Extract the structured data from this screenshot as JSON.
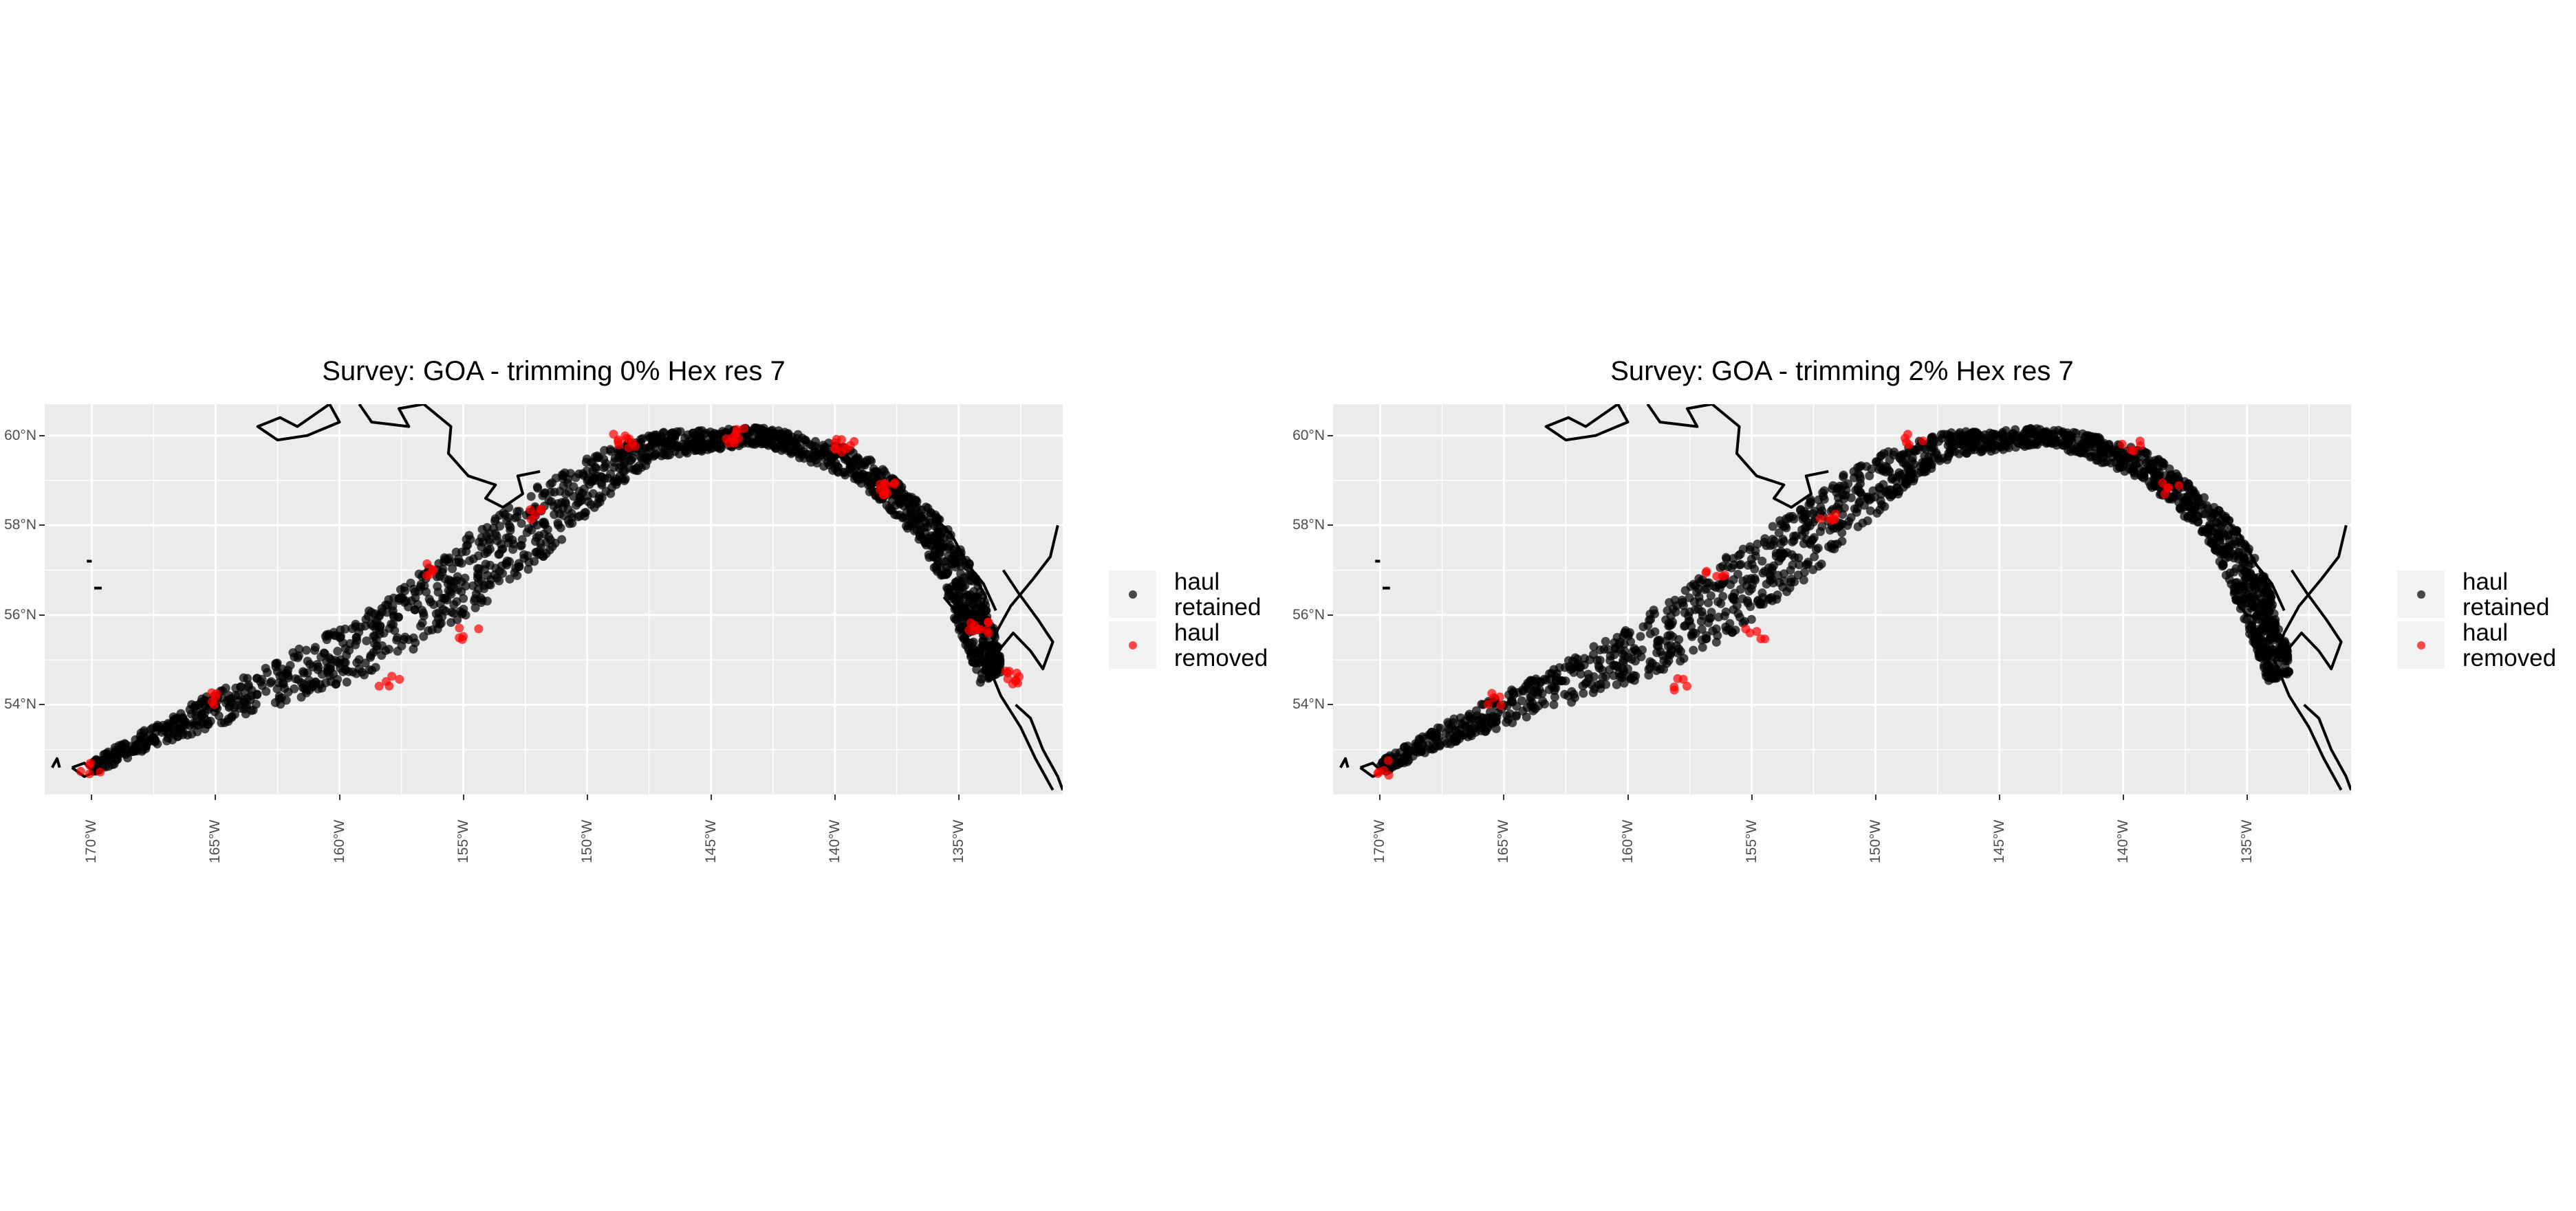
{
  "colors": {
    "retained": "#000000",
    "removed": "#ff0000",
    "panel_bg": "#ebebeb",
    "grid": "#ffffff",
    "coast": "#000000"
  },
  "panels": [
    {
      "title": "Survey: GOA - trimming 0% Hex res 7",
      "trim_percent": 0
    },
    {
      "title": "Survey: GOA - trimming 2% Hex res 7",
      "trim_percent": 2
    }
  ],
  "axes": {
    "y_ticks": [
      "54°N",
      "56°N",
      "58°N",
      "60°N"
    ],
    "x_ticks": [
      "170°W",
      "165°W",
      "160°W",
      "155°W",
      "150°W",
      "145°W",
      "140°W",
      "135°W"
    ],
    "y_values": [
      54,
      56,
      58,
      60
    ],
    "x_values": [
      -170,
      -165,
      -160,
      -155,
      -150,
      -145,
      -140,
      -135
    ],
    "lon_range": [
      -171.9,
      -130.8
    ],
    "lat_range": [
      52.0,
      60.7
    ]
  },
  "legend": {
    "items": [
      {
        "label": "haul retained",
        "line1": "haul",
        "line2": "retained",
        "color": "#000000"
      },
      {
        "label": "haul removed",
        "line1": "haul",
        "line2": "removed",
        "color": "#ff0000"
      }
    ],
    "placement": "right"
  },
  "chart_data": [
    {
      "type": "scatter",
      "title": "Survey: GOA - trimming 0% Hex res 7",
      "xlabel": "",
      "ylabel": "",
      "xlim": [
        -171.9,
        -130.8
      ],
      "ylim": [
        52.0,
        60.7
      ],
      "grid": true,
      "legend": "right",
      "series": [
        {
          "name": "haul retained",
          "color": "#000000"
        },
        {
          "name": "haul removed",
          "color": "#ff0000",
          "clusters": [
            [
              -148.5,
              59.9
            ],
            [
              -144.0,
              60.0
            ],
            [
              -139.6,
              59.8
            ],
            [
              -138.0,
              58.8
            ],
            [
              -134.2,
              55.7
            ],
            [
              -133.0,
              54.6
            ],
            [
              -154.8,
              55.6
            ],
            [
              -158.0,
              54.5
            ],
            [
              -165.2,
              54.1
            ],
            [
              -170.0,
              52.6
            ],
            [
              -156.5,
              57.0
            ],
            [
              -152.0,
              58.2
            ]
          ]
        }
      ]
    },
    {
      "type": "scatter",
      "title": "Survey: GOA - trimming 2% Hex res 7",
      "xlabel": "",
      "ylabel": "",
      "xlim": [
        -171.9,
        -130.8
      ],
      "ylim": [
        52.0,
        60.7
      ],
      "grid": true,
      "legend": "right",
      "series": [
        {
          "name": "haul retained",
          "color": "#000000"
        },
        {
          "name": "haul removed",
          "color": "#ff0000",
          "clusters": [
            [
              -148.5,
              59.9
            ],
            [
              -139.6,
              59.8
            ],
            [
              -138.0,
              58.8
            ],
            [
              -154.8,
              55.6
            ],
            [
              -158.0,
              54.5
            ],
            [
              -165.2,
              54.1
            ],
            [
              -170.0,
              52.6
            ],
            [
              -156.5,
              57.0
            ],
            [
              -152.0,
              58.2
            ]
          ]
        }
      ]
    }
  ]
}
